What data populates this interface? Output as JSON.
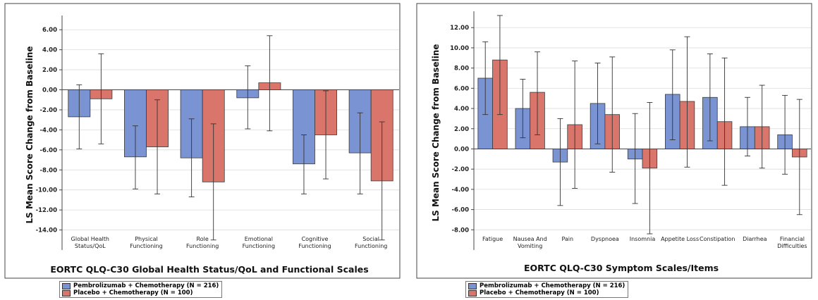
{
  "legend": [
    {
      "name": "Pembrolizumab + Chemotherapy (N = 216)",
      "color": "#7a93d2"
    },
    {
      "name": "Placebo + Chemotherapy (N = 100)",
      "color": "#d9756a"
    }
  ],
  "chart_data": [
    {
      "type": "bar",
      "title": "",
      "xlabel": "EORTC QLQ-C30 Global Health Status/QoL and Functional Scales",
      "ylabel": "LS Mean Score Change from Baseline",
      "ylim": [
        -16,
        7
      ],
      "yticks": [
        6,
        4,
        2,
        0,
        -2,
        -4,
        -6,
        -8,
        -10,
        -12,
        -14
      ],
      "ytick_labels": [
        "6.00",
        "4.00",
        "2.00",
        "0.00",
        "-2.00",
        "-4.00",
        "-6.00",
        "-8.00",
        "-10.00",
        "-12.00",
        "-14.00"
      ],
      "grid": true,
      "categories": [
        [
          "Global Health",
          "Status/QoL"
        ],
        [
          "Physical",
          "Functioning"
        ],
        [
          "Role",
          "Functioning"
        ],
        [
          "Emotional",
          "Functioning"
        ],
        [
          "Cognitive",
          "Functioning"
        ],
        [
          "Social",
          "Functioning"
        ]
      ],
      "series": [
        {
          "name": "Pembrolizumab + Chemotherapy (N = 216)",
          "values": [
            -2.7,
            -6.7,
            -6.8,
            -0.8,
            -7.4,
            -6.3
          ],
          "ci_low": [
            -5.9,
            -9.9,
            -10.7,
            -3.9,
            -10.4,
            -10.4
          ],
          "ci_high": [
            0.5,
            -3.6,
            -2.9,
            2.4,
            -4.5,
            -2.3
          ]
        },
        {
          "name": "Placebo + Chemotherapy (N = 100)",
          "values": [
            -0.9,
            -5.7,
            -9.2,
            0.7,
            -4.5,
            -9.1
          ],
          "ci_low": [
            -5.4,
            -10.4,
            -15.0,
            -4.1,
            -8.9,
            -15.0
          ],
          "ci_high": [
            3.6,
            -1.0,
            -3.4,
            5.4,
            -0.1,
            -3.2
          ]
        }
      ]
    },
    {
      "type": "bar",
      "title": "",
      "xlabel": "EORTC QLQ-C30 Symptom Scales/Items",
      "ylabel": "LS Mean Score Change from Baseline",
      "ylim": [
        -10,
        13.2
      ],
      "yticks": [
        12,
        10,
        8,
        6,
        4,
        2,
        0,
        -2,
        -4,
        -6,
        -8
      ],
      "ytick_labels": [
        "12.00",
        "10.00",
        "8.00",
        "6.00",
        "4.00",
        "2.00",
        "0.00",
        "-2.00",
        "-4.00",
        "-6.00",
        "-8.00"
      ],
      "grid": true,
      "categories": [
        [
          "Fatigue"
        ],
        [
          "Nausea And",
          "Vomiting"
        ],
        [
          "Pain"
        ],
        [
          "Dyspnoea"
        ],
        [
          "Insomnia"
        ],
        [
          "Appetite Loss"
        ],
        [
          "Constipation"
        ],
        [
          "Diarrhea"
        ],
        [
          "Financial",
          "Difficulties"
        ]
      ],
      "series": [
        {
          "name": "Pembrolizumab + Chemotherapy (N = 216)",
          "values": [
            7.0,
            4.0,
            -1.3,
            4.5,
            -1.0,
            5.4,
            5.1,
            2.2,
            1.4
          ],
          "ci_low": [
            3.4,
            1.1,
            -5.6,
            0.5,
            -5.4,
            0.9,
            0.8,
            -0.7,
            -2.5
          ],
          "ci_high": [
            10.6,
            6.9,
            3.0,
            8.5,
            3.5,
            9.8,
            9.4,
            5.1,
            5.3
          ]
        },
        {
          "name": "Placebo + Chemotherapy (N = 100)",
          "values": [
            8.8,
            5.6,
            2.4,
            3.4,
            -1.9,
            4.7,
            2.7,
            2.2,
            -0.8
          ],
          "ci_low": [
            3.4,
            1.4,
            -3.9,
            -2.3,
            -8.4,
            -1.8,
            -3.6,
            -1.9,
            -6.5
          ],
          "ci_high": [
            13.2,
            9.6,
            8.7,
            9.1,
            4.6,
            11.1,
            9.0,
            6.3,
            4.9
          ]
        }
      ]
    }
  ]
}
